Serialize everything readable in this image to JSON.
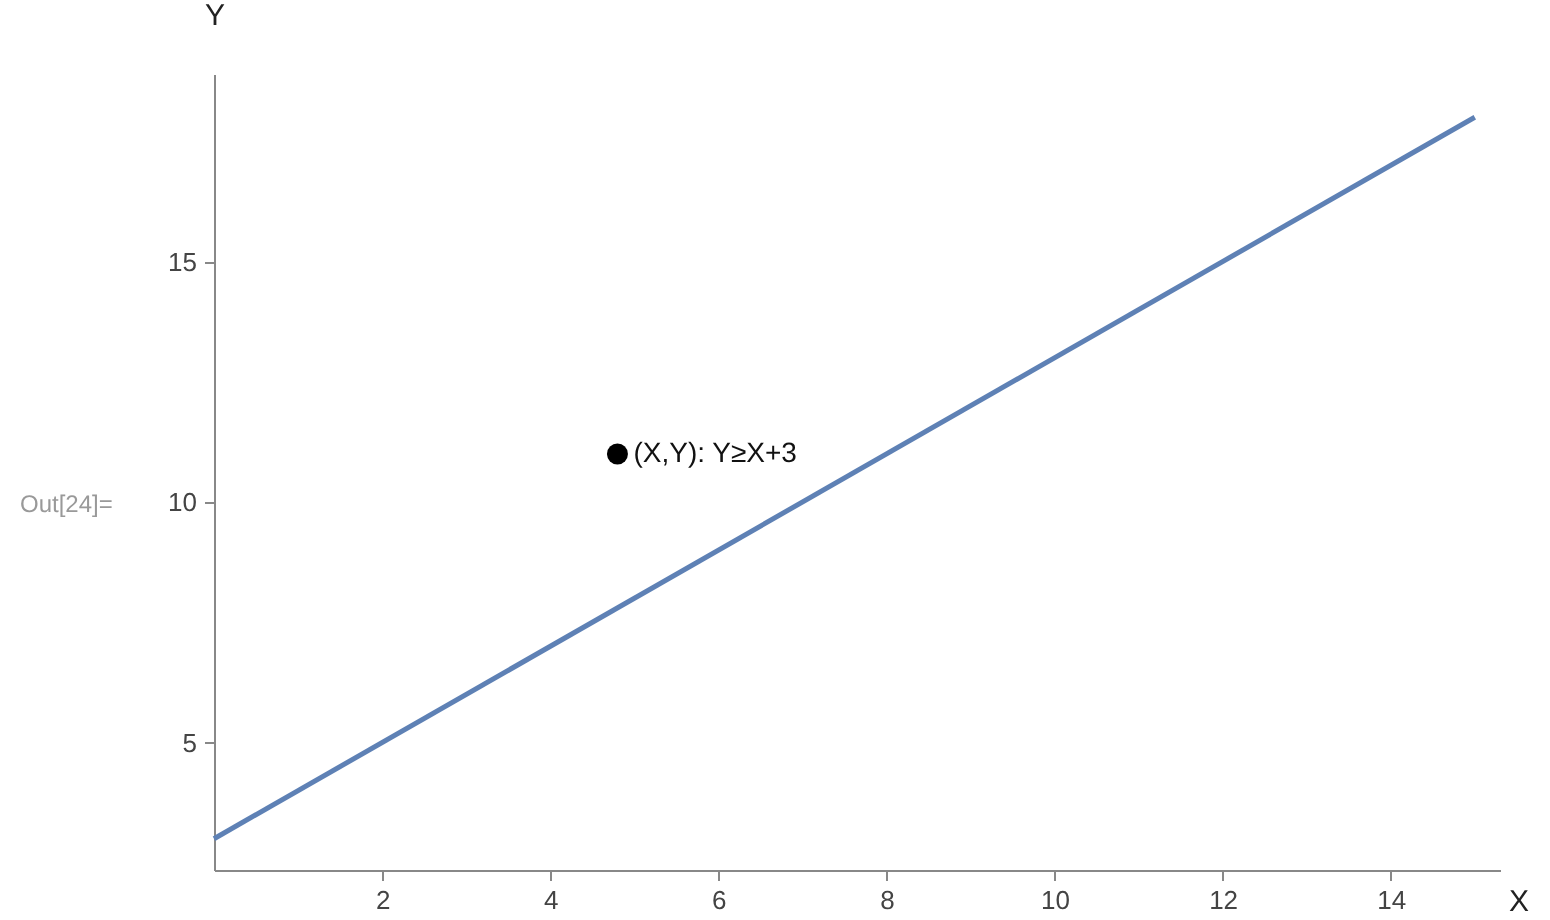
{
  "chart_data": {
    "type": "line",
    "xlabel": "X",
    "ylabel": "Y",
    "xlim": [
      0,
      15.3
    ],
    "ylim": [
      2.35,
      18.9
    ],
    "xticks": [
      2,
      4,
      6,
      8,
      10,
      12,
      14
    ],
    "yticks": [
      5,
      10,
      15
    ],
    "grid": false,
    "series": [
      {
        "type": "line",
        "color": "#5e81b5",
        "x": [
          0,
          15
        ],
        "values": [
          3,
          18
        ]
      },
      {
        "type": "scatter",
        "color": "#000000",
        "marker": "circle",
        "x": [
          4.8
        ],
        "values": [
          11
        ]
      }
    ],
    "annotations": [
      {
        "text": "(X,Y): Y≥X+3",
        "x": 4.8,
        "y": 11
      },
      "Out[24]="
    ]
  }
}
